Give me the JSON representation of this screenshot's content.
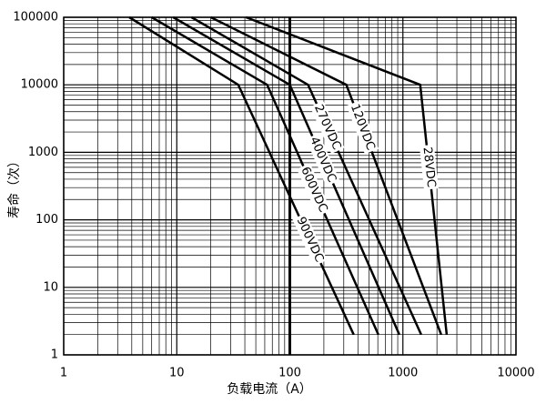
{
  "chart_data": {
    "type": "line",
    "x_label": "负载电流（A）",
    "y_label": "寿命（次）",
    "log_x": true,
    "log_y": true,
    "grid": true,
    "minor_grid": true,
    "xlim": [
      1,
      10000
    ],
    "xticks": [
      1,
      10,
      100,
      1000,
      10000
    ],
    "ylim": [
      1,
      100000
    ],
    "yticks": [
      1,
      10,
      100,
      1000,
      10000,
      100000
    ],
    "reference_line_x": 100,
    "series": [
      {
        "name": "900VDC",
        "color": "#000000",
        "x": [
          3.8,
          35,
          367
        ],
        "values": [
          100000,
          10000,
          2
        ]
      },
      {
        "name": "600VDC",
        "color": "#000000",
        "x": [
          6,
          63,
          606
        ],
        "values": [
          100000,
          10000,
          2
        ]
      },
      {
        "name": "400VDC",
        "color": "#000000",
        "x": [
          9.3,
          100,
          929
        ],
        "values": [
          100000,
          10000,
          2
        ]
      },
      {
        "name": "270VDC",
        "color": "#000000",
        "x": [
          13.5,
          145,
          1450
        ],
        "values": [
          100000,
          10000,
          2
        ]
      },
      {
        "name": "120VDC",
        "color": "#000000",
        "x": [
          20,
          316,
          2180
        ],
        "values": [
          100000,
          10000,
          2
        ]
      },
      {
        "name": "28VDC",
        "color": "#000000",
        "x": [
          41,
          1423,
          2440
        ],
        "values": [
          100000,
          10000,
          2
        ]
      }
    ]
  }
}
